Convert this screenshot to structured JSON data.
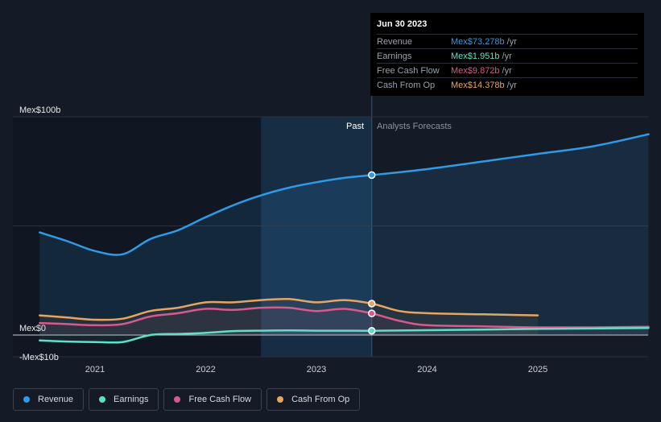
{
  "colors": {
    "revenue": "#2f9ae6",
    "earnings": "#5ee0c8",
    "free_cash_flow": "#d75a8c",
    "cash_from_op": "#e8a55e",
    "background": "#151b26"
  },
  "tooltip": {
    "date": "Jun 30 2023",
    "rows": [
      {
        "label": "Revenue",
        "value": "Mex$73.278b",
        "unit": "/yr",
        "color": "#2f9ae6"
      },
      {
        "label": "Earnings",
        "value": "Mex$1.951b",
        "unit": "/yr",
        "color": "#5ee0c8"
      },
      {
        "label": "Free Cash Flow",
        "value": "Mex$9.872b",
        "unit": "/yr",
        "color": "#d75a8c"
      },
      {
        "label": "Cash From Op",
        "value": "Mex$14.378b",
        "unit": "/yr",
        "color": "#e8a55e"
      }
    ]
  },
  "regions": {
    "past": "Past",
    "forecast": "Analysts Forecasts"
  },
  "legend": [
    {
      "label": "Revenue",
      "color": "#2f9ae6"
    },
    {
      "label": "Earnings",
      "color": "#5ee0c8"
    },
    {
      "label": "Free Cash Flow",
      "color": "#d75a8c"
    },
    {
      "label": "Cash From Op",
      "color": "#e8a55e"
    }
  ],
  "chart_data": {
    "type": "line",
    "y_ticks": [
      {
        "value": 100,
        "label": "Mex$100b"
      },
      {
        "value": 0,
        "label": "Mex$0"
      },
      {
        "value": -10,
        "label": "-Mex$10b"
      }
    ],
    "x_ticks": [
      {
        "value": 2021,
        "label": "2021"
      },
      {
        "value": 2022,
        "label": "2022"
      },
      {
        "value": 2023,
        "label": "2023"
      },
      {
        "value": 2024,
        "label": "2024"
      },
      {
        "value": 2025,
        "label": "2025"
      }
    ],
    "xlim": [
      2020.5,
      2026.0
    ],
    "ylim": [
      -10,
      100
    ],
    "past_end": 2023.5,
    "highlight_start": 2022.5,
    "series": [
      {
        "name": "Revenue",
        "key": "revenue",
        "area": true,
        "x": [
          2020.5,
          2020.75,
          2021.0,
          2021.25,
          2021.5,
          2021.75,
          2022.0,
          2022.25,
          2022.5,
          2022.75,
          2023.0,
          2023.25,
          2023.5,
          2024.0,
          2024.5,
          2025.0,
          2025.5,
          2026.0
        ],
        "y": [
          47,
          43,
          38.5,
          37,
          44,
          48,
          54,
          59.5,
          64,
          67.5,
          70,
          72,
          73.3,
          76,
          79.5,
          83,
          86.5,
          92
        ]
      },
      {
        "name": "Cash From Op",
        "key": "cash_from_op",
        "x": [
          2020.5,
          2020.75,
          2021.0,
          2021.25,
          2021.5,
          2021.75,
          2022.0,
          2022.25,
          2022.5,
          2022.75,
          2023.0,
          2023.25,
          2023.5,
          2023.75,
          2024.0,
          2024.5,
          2025.0
        ],
        "y": [
          9,
          8,
          7,
          7.5,
          11,
          12.5,
          15,
          15,
          16,
          16.5,
          15,
          16,
          14.4,
          11,
          10,
          9.5,
          9
        ]
      },
      {
        "name": "Free Cash Flow",
        "key": "free_cash_flow",
        "x": [
          2020.5,
          2020.75,
          2021.0,
          2021.25,
          2021.5,
          2021.75,
          2022.0,
          2022.25,
          2022.5,
          2022.75,
          2023.0,
          2023.25,
          2023.5,
          2023.75,
          2024.0,
          2024.5,
          2025.0,
          2025.5,
          2026.0
        ],
        "y": [
          5.5,
          5,
          4.5,
          5,
          8.5,
          10,
          12,
          11.5,
          12.5,
          12.5,
          11,
          12,
          9.9,
          6.5,
          4.5,
          4,
          3.5,
          3.5,
          3.8
        ]
      },
      {
        "name": "Earnings",
        "key": "earnings",
        "x": [
          2020.5,
          2020.75,
          2021.0,
          2021.25,
          2021.5,
          2021.75,
          2022.0,
          2022.25,
          2022.5,
          2022.75,
          2023.0,
          2023.25,
          2023.5,
          2024.0,
          2024.5,
          2025.0,
          2025.5,
          2026.0
        ],
        "y": [
          -2.5,
          -3,
          -3.2,
          -3.2,
          0,
          0.5,
          1,
          1.8,
          2,
          2.1,
          2,
          2,
          1.95,
          2.2,
          2.5,
          2.8,
          3,
          3.2
        ]
      }
    ]
  }
}
